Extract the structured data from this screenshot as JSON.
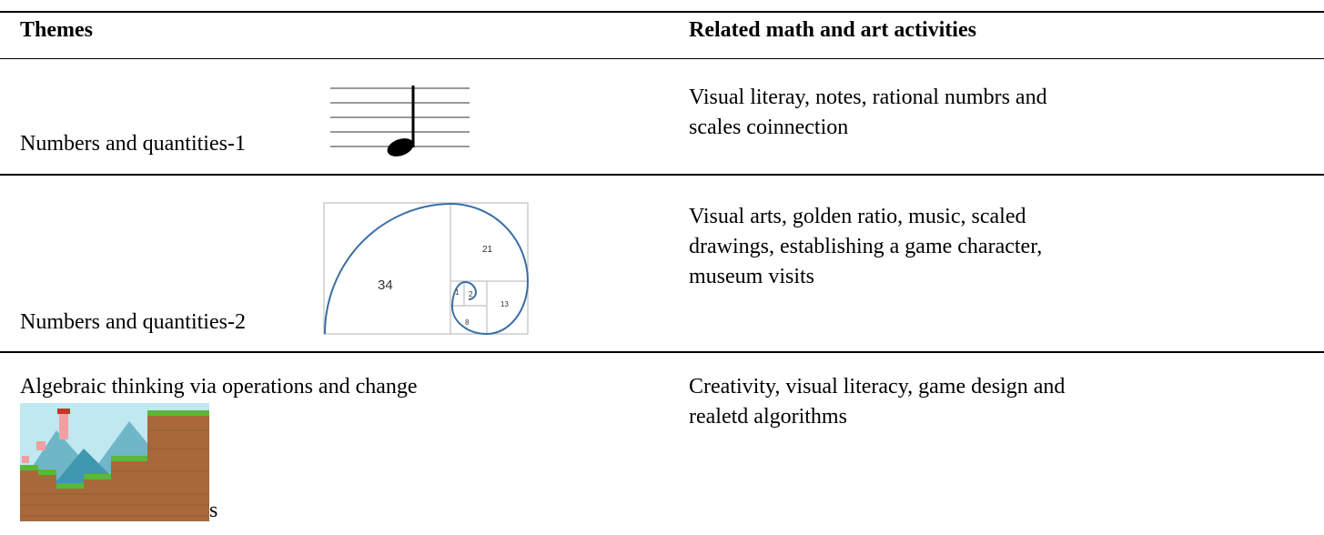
{
  "table": {
    "header": [
      "Themes",
      "Related math and art activities"
    ],
    "rows": [
      [
        "Numbers and quantities-1",
        "Visual literay, notes, rational numbrs and scales coinnection"
      ],
      [
        "Numbers and quantities-2",
        "Visual arts, golden ratio, music, scaled drawings, establishing a game character, museum visits"
      ],
      [
        "Algebraic thinking via operations and change",
        "Creativity, visual literacy, game design and realetd algorithms"
      ]
    ],
    "row3_suffix": "s"
  },
  "figures": {
    "fibonacci_labels": [
      "34",
      "21",
      "13",
      "8",
      "1",
      "2"
    ]
  }
}
